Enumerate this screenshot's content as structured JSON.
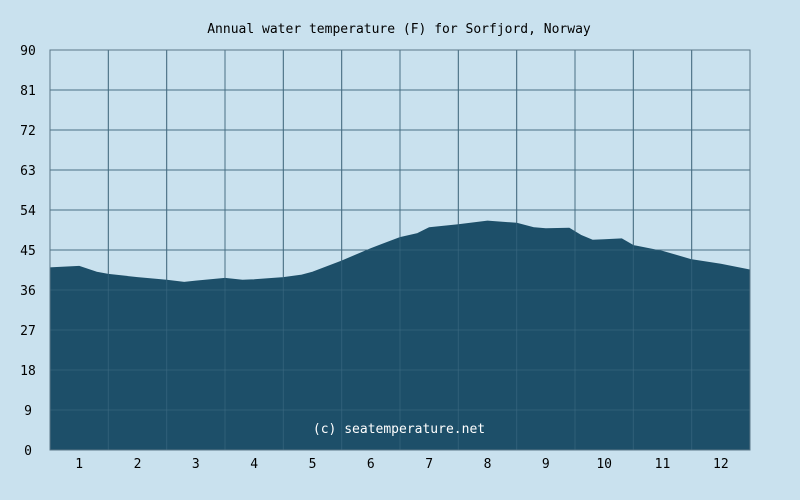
{
  "chart_data": {
    "type": "area",
    "title": "Annual water temperature (F) for Sorfjord, Norway",
    "watermark": "(c) seatemperature.net",
    "xlabel": "",
    "ylabel": "",
    "x_ticks": [
      "1",
      "2",
      "3",
      "4",
      "5",
      "6",
      "7",
      "8",
      "9",
      "10",
      "11",
      "12"
    ],
    "y_ticks": [
      "0",
      "9",
      "18",
      "27",
      "36",
      "45",
      "54",
      "63",
      "72",
      "81",
      "90"
    ],
    "ylim": [
      0,
      90
    ],
    "xlim": [
      0.5,
      12.5
    ],
    "grid": true,
    "colors": {
      "background": "#c9e1ee",
      "fill": "#1d4f69",
      "grid": "#5a7788"
    },
    "series": [
      {
        "x": [
          0.5,
          1.0,
          1.3,
          1.5,
          2.0,
          2.5,
          2.8,
          3.0,
          3.5,
          3.8,
          4.0,
          4.5,
          4.8,
          5.0,
          5.5,
          6.0,
          6.5,
          6.8,
          7.0,
          7.5,
          8.0,
          8.5,
          8.8,
          9.0,
          9.4,
          9.6,
          9.8,
          10.0,
          10.3,
          10.5,
          11.0,
          11.5,
          12.0,
          12.5
        ],
        "values": [
          41.0,
          41.3,
          40.0,
          39.5,
          38.8,
          38.2,
          37.7,
          38.0,
          38.6,
          38.2,
          38.3,
          38.8,
          39.3,
          40.0,
          42.5,
          45.3,
          47.8,
          48.7,
          50.0,
          50.7,
          51.5,
          51.0,
          50.0,
          49.8,
          49.9,
          48.3,
          47.2,
          47.3,
          47.5,
          46.0,
          44.7,
          42.8,
          41.8,
          40.5
        ]
      }
    ]
  }
}
